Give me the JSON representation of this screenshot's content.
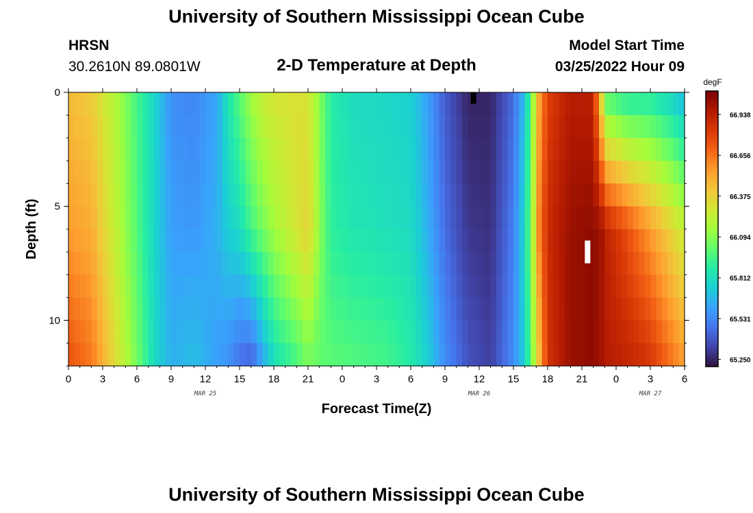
{
  "header": {
    "title": "University of Southern Mississippi Ocean Cube",
    "station": "HRSN",
    "coordinates": "30.2610N  89.0801W",
    "subtitle": "2-D Temperature at Depth",
    "model_start_label": "Model Start Time",
    "model_start_value": "03/25/2022 Hour 09"
  },
  "footer": {
    "title": "University of Southern Mississippi Ocean Cube"
  },
  "chart_data": {
    "type": "heatmap",
    "title": "2-D Temperature at Depth",
    "xlabel": "Forecast Time(Z)",
    "ylabel": "Depth (ft)",
    "units": "degF",
    "x_hours_since_mar25_00z": [
      0,
      54
    ],
    "y_depth_ft_range": [
      0,
      12
    ],
    "y_inverted": true,
    "x_tick_labels": [
      "0",
      "3",
      "6",
      "9",
      "12",
      "15",
      "18",
      "21",
      "0",
      "3",
      "6",
      "9",
      "12",
      "15",
      "18",
      "21",
      "0",
      "3",
      "6"
    ],
    "y_tick_labels": [
      "0",
      "5",
      "10"
    ],
    "y_tick_values": [
      0,
      5,
      10
    ],
    "date_labels": [
      {
        "label": "MAR 25",
        "hour": 12
      },
      {
        "label": "MAR 26",
        "hour": 36
      },
      {
        "label": "MAR 27",
        "hour": 51
      }
    ],
    "colorbar": {
      "min": 65.2,
      "max": 67.1,
      "tick_labels": [
        "66.938",
        "66.656",
        "66.375",
        "66.094",
        "65.812",
        "65.531",
        "65.250"
      ],
      "tick_values": [
        66.938,
        66.656,
        66.375,
        66.094,
        65.812,
        65.531,
        65.25
      ],
      "colors": [
        "#30123b",
        "#4145ab",
        "#4675ed",
        "#39a2fc",
        "#1bcfd4",
        "#24eca6",
        "#61fc6c",
        "#a4fc3b",
        "#d1e834",
        "#f3c63a",
        "#fe9b2d",
        "#f36315",
        "#d93806",
        "#b11901",
        "#7a0402"
      ]
    },
    "depth_profile_keys": [
      0,
      6,
      12
    ],
    "time_keyframes": [
      {
        "hour": 0,
        "t": [
          66.45,
          66.55,
          66.75
        ]
      },
      {
        "hour": 2,
        "t": [
          66.4,
          66.5,
          66.65
        ]
      },
      {
        "hour": 4,
        "t": [
          66.2,
          66.25,
          66.35
        ]
      },
      {
        "hour": 6,
        "t": [
          65.95,
          65.98,
          66.05
        ]
      },
      {
        "hour": 7.5,
        "t": [
          65.78,
          65.78,
          65.8
        ]
      },
      {
        "hour": 9,
        "t": [
          65.55,
          65.6,
          65.65
        ]
      },
      {
        "hour": 11,
        "t": [
          65.52,
          65.58,
          65.7
        ]
      },
      {
        "hour": 13,
        "t": [
          65.62,
          65.65,
          65.6
        ]
      },
      {
        "hour": 14,
        "t": [
          65.85,
          65.75,
          65.55
        ]
      },
      {
        "hour": 15,
        "t": [
          66.0,
          65.8,
          65.45
        ]
      },
      {
        "hour": 16,
        "t": [
          66.15,
          65.95,
          65.4
        ]
      },
      {
        "hour": 17,
        "t": [
          66.25,
          66.05,
          65.6
        ]
      },
      {
        "hour": 18,
        "t": [
          66.3,
          66.15,
          65.8
        ]
      },
      {
        "hour": 20,
        "t": [
          66.32,
          66.3,
          65.95
        ]
      },
      {
        "hour": 21,
        "t": [
          66.3,
          66.38,
          66.05
        ]
      },
      {
        "hour": 22,
        "t": [
          66.1,
          66.1,
          66.0
        ]
      },
      {
        "hour": 23,
        "t": [
          65.88,
          65.9,
          66.0
        ]
      },
      {
        "hour": 25,
        "t": [
          65.8,
          65.85,
          65.98
        ]
      },
      {
        "hour": 28,
        "t": [
          65.78,
          65.82,
          65.95
        ]
      },
      {
        "hour": 30,
        "t": [
          65.75,
          65.8,
          65.88
        ]
      },
      {
        "hour": 31.5,
        "t": [
          65.6,
          65.65,
          65.75
        ]
      },
      {
        "hour": 33,
        "t": [
          65.4,
          65.45,
          65.55
        ]
      },
      {
        "hour": 35,
        "t": [
          65.25,
          65.3,
          65.38
        ]
      },
      {
        "hour": 37,
        "t": [
          65.25,
          65.28,
          65.32
        ]
      },
      {
        "hour": 39,
        "t": [
          65.45,
          65.5,
          65.55
        ]
      },
      {
        "hour": 40,
        "t": [
          65.7,
          65.8,
          65.75
        ]
      },
      {
        "hour": 40.6,
        "t": [
          66.05,
          66.1,
          66.05
        ]
      },
      {
        "hour": 41.2,
        "t": [
          66.5,
          66.6,
          66.4
        ]
      },
      {
        "hour": 42,
        "t": [
          66.8,
          66.88,
          66.85
        ]
      },
      {
        "hour": 44,
        "t": [
          66.95,
          67.02,
          67.02
        ]
      },
      {
        "hour": 46,
        "t": [
          66.93,
          67.05,
          67.05
        ]
      },
      {
        "hour": 46.6,
        "t": [
          66.4,
          67.02,
          67.0
        ]
      },
      {
        "hour": 47.2,
        "t": [
          65.95,
          66.92,
          66.95
        ]
      },
      {
        "hour": 49,
        "t": [
          65.85,
          66.75,
          66.92
        ]
      },
      {
        "hour": 51,
        "t": [
          65.85,
          66.55,
          66.85
        ]
      },
      {
        "hour": 53,
        "t": [
          65.75,
          66.35,
          66.65
        ]
      },
      {
        "hour": 54,
        "t": [
          65.65,
          66.25,
          66.55
        ]
      }
    ],
    "markers": [
      {
        "name": "min-marker",
        "color": "#000000",
        "hour": 35.5,
        "depth_from": 0.0,
        "depth_to": 0.5
      },
      {
        "name": "max-marker",
        "color": "#ffffff",
        "hour": 45.5,
        "depth_from": 6.5,
        "depth_to": 7.5
      }
    ]
  }
}
